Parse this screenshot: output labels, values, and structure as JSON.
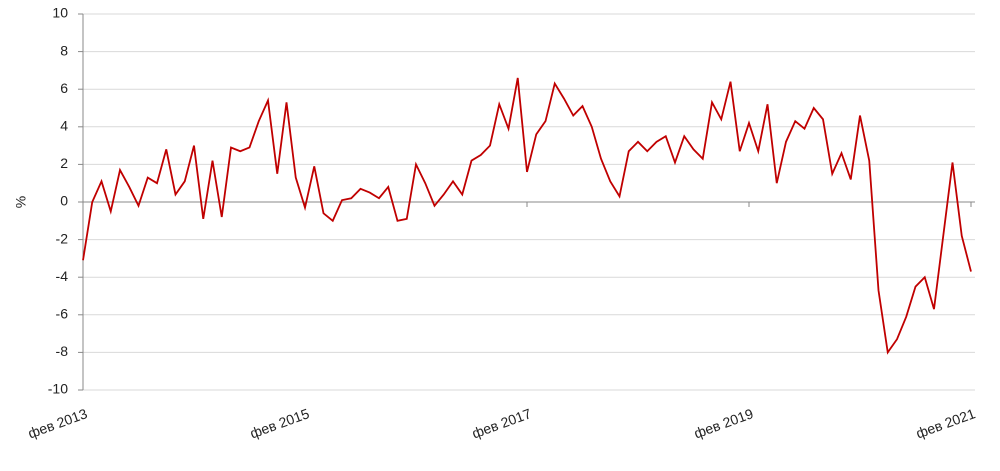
{
  "chart_data": {
    "type": "line",
    "y_label": "%",
    "categories": [
      "фев 2013",
      null,
      null,
      null,
      null,
      null,
      null,
      null,
      null,
      null,
      null,
      null,
      null,
      null,
      null,
      null,
      null,
      null,
      null,
      null,
      null,
      null,
      null,
      null,
      "фев 2015",
      null,
      null,
      null,
      null,
      null,
      null,
      null,
      null,
      null,
      null,
      null,
      null,
      null,
      null,
      null,
      null,
      null,
      null,
      null,
      null,
      null,
      null,
      null,
      "фев 2017",
      null,
      null,
      null,
      null,
      null,
      null,
      null,
      null,
      null,
      null,
      null,
      null,
      null,
      null,
      null,
      null,
      null,
      null,
      null,
      null,
      null,
      null,
      null,
      "фев 2019",
      null,
      null,
      null,
      null,
      null,
      null,
      null,
      null,
      null,
      null,
      null,
      null,
      null,
      null,
      null,
      null,
      null,
      null,
      null,
      null,
      null,
      null,
      null,
      "фев 2021"
    ],
    "series": [
      {
        "color": "#c00000",
        "values": [
          -3.1,
          0,
          1.1,
          -0.5,
          1.7,
          0.8,
          -0.2,
          1.3,
          1.0,
          2.8,
          0.4,
          1.1,
          3.0,
          -0.9,
          2.2,
          -0.8,
          2.9,
          2.7,
          2.9,
          4.3,
          5.4,
          1.5,
          5.3,
          1.3,
          -0.3,
          1.9,
          -0.6,
          -1.0,
          0.1,
          0.2,
          0.7,
          0.5,
          0.2,
          0.8,
          -1.0,
          -0.9,
          2.0,
          1.0,
          -0.2,
          0.4,
          1.1,
          0.4,
          2.2,
          2.5,
          3.0,
          5.2,
          3.9,
          6.6,
          1.6,
          3.6,
          4.3,
          6.3,
          5.5,
          4.6,
          5.1,
          4.0,
          2.3,
          1.1,
          0.3,
          2.7,
          3.2,
          2.7,
          3.2,
          3.5,
          2.1,
          3.5,
          2.8,
          2.3,
          5.3,
          4.4,
          6.4,
          2.7,
          4.2,
          2.7,
          5.2,
          1.0,
          3.2,
          4.3,
          3.9,
          5.0,
          4.4,
          1.5,
          2.6,
          1.2,
          4.6,
          2.2,
          -4.7,
          -8.0,
          -7.3,
          -6.1,
          -4.5,
          -4.0,
          -5.7,
          -1.8,
          2.1,
          -1.8,
          -3.7
        ]
      }
    ],
    "ylim": [
      -10,
      10
    ],
    "yticks": [
      -10,
      -8,
      -6,
      -4,
      -2,
      0,
      2,
      4,
      6,
      8,
      10
    ],
    "grid": true
  }
}
